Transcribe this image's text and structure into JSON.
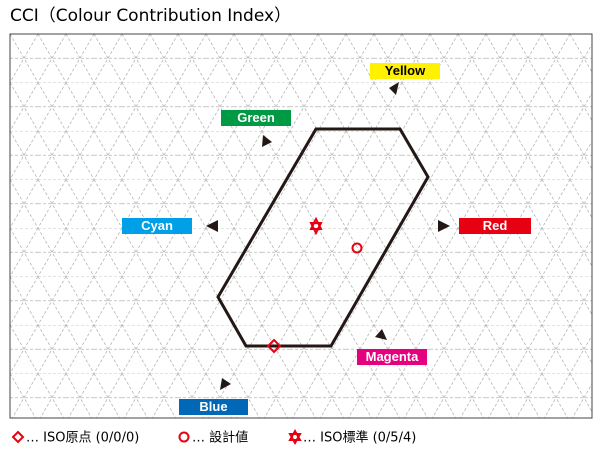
{
  "header": {
    "title": "CCI（Colour Contribution Index）"
  },
  "labels": [
    "Yellow",
    "Green",
    "Cyan",
    "Red",
    "Magenta",
    "Blue"
  ],
  "legend": [
    "… ISO原点 (0/0/0)",
    "… 設計値",
    "… ISO標準 (0/5/4)"
  ]
}
